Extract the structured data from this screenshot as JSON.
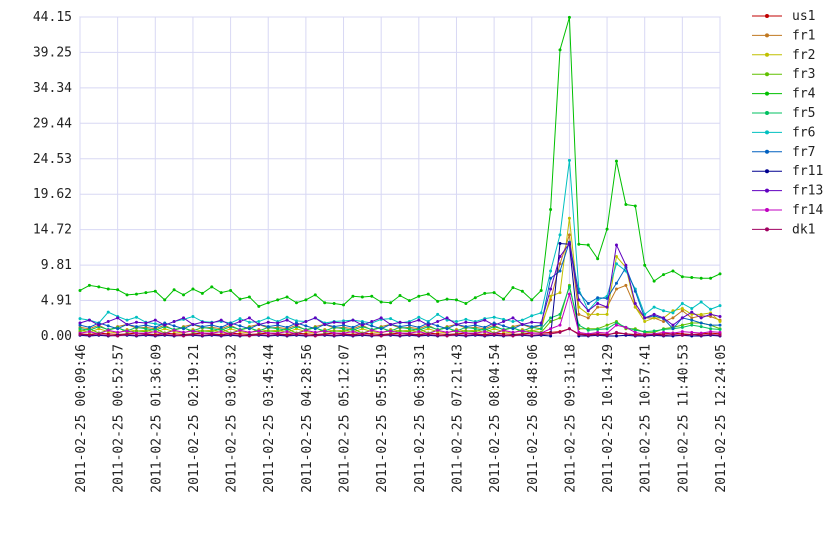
{
  "chart_data": {
    "type": "line",
    "categories": [
      "2011-02-25 00:09:46",
      null,
      null,
      null,
      "2011-02-25 00:52:57",
      null,
      null,
      null,
      "2011-02-25 01:36:09",
      null,
      null,
      null,
      "2011-02-25 02:19:21",
      null,
      null,
      null,
      "2011-02-25 03:02:32",
      null,
      null,
      null,
      "2011-02-25 03:45:44",
      null,
      null,
      null,
      "2011-02-25 04:28:56",
      null,
      null,
      null,
      "2011-02-25 05:12:07",
      null,
      null,
      null,
      "2011-02-25 05:55:19",
      null,
      null,
      null,
      "2011-02-25 06:38:31",
      null,
      null,
      null,
      "2011-02-25 07:21:43",
      null,
      null,
      null,
      "2011-02-25 08:04:54",
      null,
      null,
      null,
      "2011-02-25 08:48:06",
      null,
      null,
      null,
      "2011-02-25 09:31:18",
      null,
      null,
      null,
      "2011-02-25 10:14:29",
      null,
      null,
      null,
      "2011-02-25 10:57:41",
      null,
      null,
      null,
      "2011-02-25 11:40:53",
      null,
      null,
      null,
      "2011-02-25 12:24:05"
    ],
    "ylim": [
      0,
      44.15
    ],
    "yticks": [
      {
        "value": 0,
        "label": "0.00"
      },
      4.91,
      9.81,
      14.72,
      19.62,
      24.53,
      29.44,
      34.34,
      39.25,
      44.15
    ],
    "grid": true,
    "series": [
      {
        "name": "us1",
        "color": "#c00000",
        "values": [
          0.3,
          0.2,
          0.4,
          0.3,
          0.2,
          0.3,
          0.4,
          0.3,
          0.2,
          0.4,
          0.3,
          0.2,
          0.3,
          0.4,
          0.3,
          0.2,
          0.4,
          0.3,
          0.2,
          0.3,
          0.4,
          0.3,
          0.2,
          0.4,
          0.3,
          0.2,
          0.3,
          0.4,
          0.3,
          0.2,
          0.4,
          0.3,
          0.2,
          0.3,
          0.4,
          0.3,
          0.2,
          0.4,
          0.3,
          0.2,
          0.3,
          0.4,
          0.3,
          0.2,
          0.4,
          0.3,
          0.2,
          0.3,
          0.4,
          0.4,
          0.5,
          0.6,
          1.0,
          0.3,
          0.2,
          0.3,
          0.2,
          0.4,
          0.3,
          0.2,
          0.3,
          0.2,
          0.3,
          0.4,
          0.3,
          0.2,
          0.3,
          0.4,
          0.3
        ]
      },
      {
        "name": "fr1",
        "color": "#c07820",
        "values": [
          1.2,
          1.0,
          1.5,
          0.8,
          1.3,
          1.6,
          1.1,
          1.2,
          1.0,
          1.5,
          0.8,
          1.3,
          1.6,
          1.1,
          1.2,
          1.0,
          1.5,
          0.8,
          1.3,
          1.6,
          1.1,
          1.2,
          1.0,
          1.5,
          0.8,
          1.3,
          1.6,
          1.1,
          1.2,
          1.0,
          1.5,
          0.8,
          1.3,
          1.6,
          1.1,
          1.2,
          1.0,
          1.5,
          0.8,
          1.3,
          1.6,
          1.1,
          1.2,
          1.0,
          1.5,
          0.8,
          1.3,
          1.6,
          1.1,
          1.5,
          5.0,
          10.0,
          14.0,
          3.0,
          2.5,
          4.0,
          4.0,
          6.5,
          7.0,
          4.0,
          2.5,
          2.5,
          2.0,
          2.5,
          3.5,
          2.5,
          2.8,
          2.7,
          2.2
        ]
      },
      {
        "name": "fr2",
        "color": "#c0c000",
        "values": [
          0.8,
          0.5,
          1.0,
          0.6,
          0.4,
          0.9,
          0.7,
          0.8,
          0.5,
          1.0,
          0.6,
          0.4,
          0.9,
          0.7,
          0.8,
          0.5,
          1.0,
          0.6,
          0.4,
          0.9,
          0.7,
          0.8,
          0.5,
          1.0,
          0.6,
          0.4,
          0.9,
          0.7,
          0.8,
          0.5,
          1.0,
          0.6,
          0.4,
          0.9,
          0.7,
          0.8,
          0.5,
          1.0,
          0.6,
          0.4,
          0.9,
          0.7,
          0.8,
          0.5,
          1.0,
          0.6,
          0.4,
          0.9,
          0.7,
          1.0,
          5.5,
          6.0,
          16.3,
          4.0,
          3.0,
          3.0,
          3.0,
          11.0,
          9.5,
          4.0,
          2.0,
          2.5,
          2.5,
          3.5,
          3.8,
          3.0,
          3.0,
          3.2,
          2.0
        ]
      },
      {
        "name": "fr3",
        "color": "#60c000",
        "values": [
          0.6,
          1.0,
          0.4,
          0.8,
          1.2,
          0.5,
          0.7,
          0.6,
          1.0,
          0.4,
          0.8,
          1.2,
          0.5,
          0.7,
          0.6,
          1.0,
          0.4,
          0.8,
          1.2,
          0.5,
          0.7,
          0.6,
          1.0,
          0.4,
          0.8,
          1.2,
          0.5,
          0.7,
          0.6,
          1.0,
          0.4,
          0.8,
          1.2,
          0.5,
          0.7,
          0.6,
          1.0,
          0.4,
          0.8,
          1.2,
          0.5,
          0.7,
          0.6,
          1.0,
          0.4,
          0.8,
          1.2,
          0.5,
          0.7,
          0.5,
          2.0,
          2.5,
          7.0,
          1.0,
          1.0,
          1.0,
          1.5,
          2.0,
          1.0,
          1.0,
          0.5,
          0.5,
          1.0,
          1.2,
          1.5,
          1.8,
          1.8,
          1.5,
          1.0
        ]
      },
      {
        "name": "fr4",
        "color": "#00c000",
        "values": [
          6.3,
          7.0,
          6.8,
          6.5,
          6.4,
          5.7,
          5.8,
          6.0,
          6.2,
          5.0,
          6.4,
          5.7,
          6.5,
          5.9,
          6.8,
          6.0,
          6.3,
          5.1,
          5.4,
          4.1,
          4.6,
          5.0,
          5.4,
          4.6,
          5.0,
          5.7,
          4.6,
          4.5,
          4.3,
          5.5,
          5.4,
          5.5,
          4.7,
          4.6,
          5.6,
          4.9,
          5.5,
          5.8,
          4.8,
          5.1,
          5.0,
          4.5,
          5.3,
          5.9,
          6.0,
          5.1,
          6.7,
          6.2,
          5.0,
          6.3,
          17.5,
          39.6,
          44.1,
          12.7,
          12.6,
          10.7,
          14.8,
          24.2,
          18.2,
          18.0,
          9.8,
          7.6,
          8.5,
          9.0,
          8.2,
          8.1,
          8.0,
          8.0,
          8.6
        ]
      },
      {
        "name": "fr5",
        "color": "#00c060",
        "values": [
          1.0,
          0.8,
          1.3,
          0.9,
          1.1,
          0.7,
          1.2,
          1.0,
          0.8,
          1.3,
          0.9,
          1.1,
          0.7,
          1.2,
          1.0,
          0.8,
          1.3,
          0.9,
          1.1,
          0.7,
          1.2,
          1.0,
          0.8,
          1.3,
          0.9,
          1.1,
          0.7,
          1.2,
          1.0,
          0.8,
          1.3,
          0.9,
          1.1,
          0.7,
          1.2,
          1.0,
          0.8,
          1.3,
          0.9,
          1.1,
          0.7,
          1.2,
          1.0,
          0.8,
          1.3,
          0.9,
          1.1,
          0.7,
          1.2,
          1.0,
          2.5,
          3.0,
          6.8,
          1.5,
          0.8,
          0.9,
          1.0,
          1.8,
          1.2,
          0.8,
          0.6,
          0.7,
          0.9,
          1.0,
          1.2,
          1.5,
          1.3,
          1.0,
          0.9
        ]
      },
      {
        "name": "fr6",
        "color": "#00c0c0",
        "values": [
          2.4,
          2.2,
          1.8,
          3.3,
          2.7,
          2.2,
          2.6,
          1.9,
          1.7,
          1.5,
          2.0,
          2.3,
          2.7,
          2.0,
          1.9,
          2.0,
          1.8,
          2.4,
          1.9,
          2.0,
          2.5,
          2.0,
          2.6,
          2.1,
          2.0,
          2.5,
          1.8,
          2.0,
          2.1,
          2.2,
          2.0,
          1.8,
          2.3,
          2.4,
          1.8,
          2.0,
          2.6,
          2.0,
          3.0,
          2.2,
          2.0,
          2.3,
          2.0,
          2.4,
          2.6,
          2.3,
          2.0,
          2.2,
          2.8,
          3.2,
          9.0,
          14.0,
          24.3,
          6.5,
          3.5,
          5.0,
          5.5,
          10.0,
          9.0,
          6.5,
          3.0,
          4.0,
          3.5,
          3.2,
          4.5,
          3.8,
          4.7,
          3.7,
          4.2
        ]
      },
      {
        "name": "fr7",
        "color": "#0060c0",
        "values": [
          1.5,
          1.2,
          1.8,
          1.4,
          1.0,
          1.6,
          1.3,
          1.5,
          1.2,
          1.8,
          1.4,
          1.0,
          1.6,
          1.3,
          1.5,
          1.2,
          1.8,
          1.4,
          1.0,
          1.6,
          1.3,
          1.5,
          1.2,
          1.8,
          1.4,
          1.0,
          1.6,
          1.3,
          1.5,
          1.2,
          1.8,
          1.4,
          1.0,
          1.6,
          1.3,
          1.5,
          1.2,
          1.8,
          1.4,
          1.0,
          1.6,
          1.3,
          1.5,
          1.2,
          1.8,
          1.4,
          1.0,
          1.6,
          1.3,
          1.5,
          8.0,
          9.0,
          13.0,
          6.0,
          4.5,
          5.3,
          5.2,
          7.3,
          9.5,
          6.2,
          2.5,
          2.8,
          2.4,
          1.0,
          2.5,
          2.2,
          1.8,
          1.5,
          1.5
        ]
      },
      {
        "name": "fr11",
        "color": "#000090",
        "values": [
          0.1,
          0.0,
          0.1,
          0.0,
          0.1,
          0.1,
          0.0,
          0.1,
          0.0,
          0.1,
          0.0,
          0.1,
          0.1,
          0.0,
          0.1,
          0.0,
          0.1,
          0.0,
          0.1,
          0.1,
          0.0,
          0.1,
          0.0,
          0.1,
          0.0,
          0.1,
          0.1,
          0.0,
          0.1,
          0.0,
          0.1,
          0.0,
          0.1,
          0.1,
          0.0,
          0.1,
          0.0,
          0.1,
          0.0,
          0.1,
          0.1,
          0.0,
          0.1,
          0.0,
          0.1,
          0.0,
          0.1,
          0.1,
          0.0,
          0.1,
          0.0,
          12.8,
          12.7,
          0.0,
          0.0,
          0.1,
          0.0,
          0.0,
          0.1,
          0.0,
          0.0,
          0.1,
          0.0,
          0.0,
          0.1,
          0.0,
          0.0,
          0.1,
          0.0
        ]
      },
      {
        "name": "fr13",
        "color": "#6000c0",
        "values": [
          1.8,
          2.2,
          1.5,
          2.0,
          2.5,
          1.6,
          1.9,
          1.8,
          2.2,
          1.5,
          2.0,
          2.5,
          1.6,
          1.9,
          1.8,
          2.2,
          1.5,
          2.0,
          2.5,
          1.6,
          1.9,
          1.8,
          2.2,
          1.5,
          2.0,
          2.5,
          1.6,
          1.9,
          1.8,
          2.2,
          1.5,
          2.0,
          2.5,
          1.6,
          1.9,
          1.8,
          2.2,
          1.5,
          2.0,
          2.5,
          1.6,
          1.9,
          1.8,
          2.2,
          1.5,
          2.0,
          2.5,
          1.6,
          1.9,
          1.8,
          6.5,
          11.0,
          12.8,
          5.0,
          3.5,
          4.5,
          4.0,
          12.6,
          9.8,
          4.5,
          2.5,
          3.0,
          2.5,
          1.5,
          2.5,
          3.3,
          2.5,
          3.0,
          2.7
        ]
      },
      {
        "name": "fr14",
        "color": "#c000c0",
        "values": [
          0.4,
          0.6,
          0.3,
          0.8,
          0.5,
          0.7,
          0.4,
          0.4,
          0.6,
          0.3,
          0.8,
          0.5,
          0.7,
          0.4,
          0.4,
          0.6,
          0.3,
          0.8,
          0.5,
          0.7,
          0.4,
          0.4,
          0.6,
          0.3,
          0.8,
          0.5,
          0.7,
          0.4,
          0.4,
          0.6,
          0.3,
          0.8,
          0.5,
          0.7,
          0.4,
          0.4,
          0.6,
          0.3,
          0.8,
          0.5,
          0.7,
          0.4,
          0.4,
          0.6,
          0.3,
          0.8,
          0.5,
          0.7,
          0.4,
          0.4,
          1.0,
          1.5,
          5.8,
          0.5,
          0.3,
          0.5,
          0.4,
          1.5,
          1.2,
          0.5,
          0.2,
          0.3,
          0.5,
          0.4,
          0.6,
          0.5,
          0.4,
          0.6,
          0.5
        ]
      },
      {
        "name": "dk1",
        "color": "#a00060",
        "values": [
          0.2,
          0.1,
          0.2,
          0.1,
          0.0,
          0.2,
          0.1,
          0.2,
          0.1,
          0.2,
          0.1,
          0.0,
          0.2,
          0.1,
          0.2,
          0.1,
          0.2,
          0.1,
          0.0,
          0.2,
          0.1,
          0.2,
          0.1,
          0.2,
          0.1,
          0.0,
          0.2,
          0.1,
          0.2,
          0.1,
          0.2,
          0.1,
          0.0,
          0.2,
          0.1,
          0.2,
          0.1,
          0.2,
          0.1,
          0.0,
          0.2,
          0.1,
          0.2,
          0.1,
          0.2,
          0.1,
          0.0,
          0.2,
          0.1,
          0.2,
          0.3,
          0.5,
          1.0,
          0.2,
          0.1,
          0.2,
          0.1,
          0.5,
          0.3,
          0.1,
          0.1,
          0.2,
          0.1,
          0.2,
          0.1,
          0.2,
          0.1,
          0.2,
          0.1
        ]
      }
    ]
  }
}
